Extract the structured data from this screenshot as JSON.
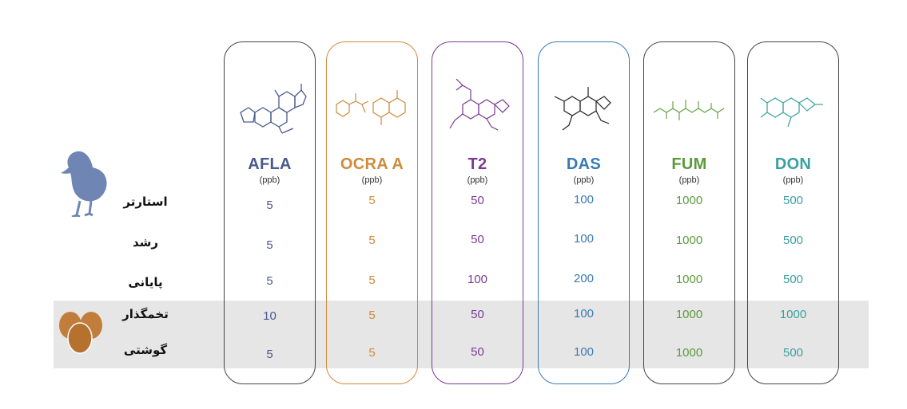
{
  "rows": [
    "استارتر",
    "رشد",
    "پایانی",
    "تخمگذار",
    "گوشتی"
  ],
  "unit": "(ppb)",
  "colors": {
    "AFLA": "#4a5a8c",
    "OCRA A": "#d08a3c",
    "T2": "#7a3a94",
    "DAS": "#3a7ab4",
    "FUM": "#5a9a3a",
    "DON": "#3aa0a0",
    "icon": "#6f86b5",
    "egg": "#c17d3c",
    "band": "#e6e6e6"
  },
  "columns": [
    {
      "name": "AFLA",
      "border": "#444444",
      "values": [
        "5",
        "5",
        "5",
        "10",
        "5"
      ]
    },
    {
      "name": "OCRA A",
      "border": "#d08a3c",
      "values": [
        "5",
        "5",
        "5",
        "5",
        "5"
      ]
    },
    {
      "name": "T2",
      "border": "#7a3a94",
      "values": [
        "50",
        "50",
        "100",
        "50",
        "50"
      ]
    },
    {
      "name": "DAS",
      "border": "#3a7ab4",
      "values": [
        "100",
        "100",
        "200",
        "100",
        "100"
      ]
    },
    {
      "name": "FUM",
      "border": "#444444",
      "values": [
        "1000",
        "1000",
        "1000",
        "1000",
        "1000"
      ]
    },
    {
      "name": "DON",
      "border": "#444444",
      "values": [
        "500",
        "500",
        "500",
        "1000",
        "500"
      ]
    }
  ],
  "icons": {
    "chick": "chick-icon",
    "eggs": "eggs-icon"
  }
}
